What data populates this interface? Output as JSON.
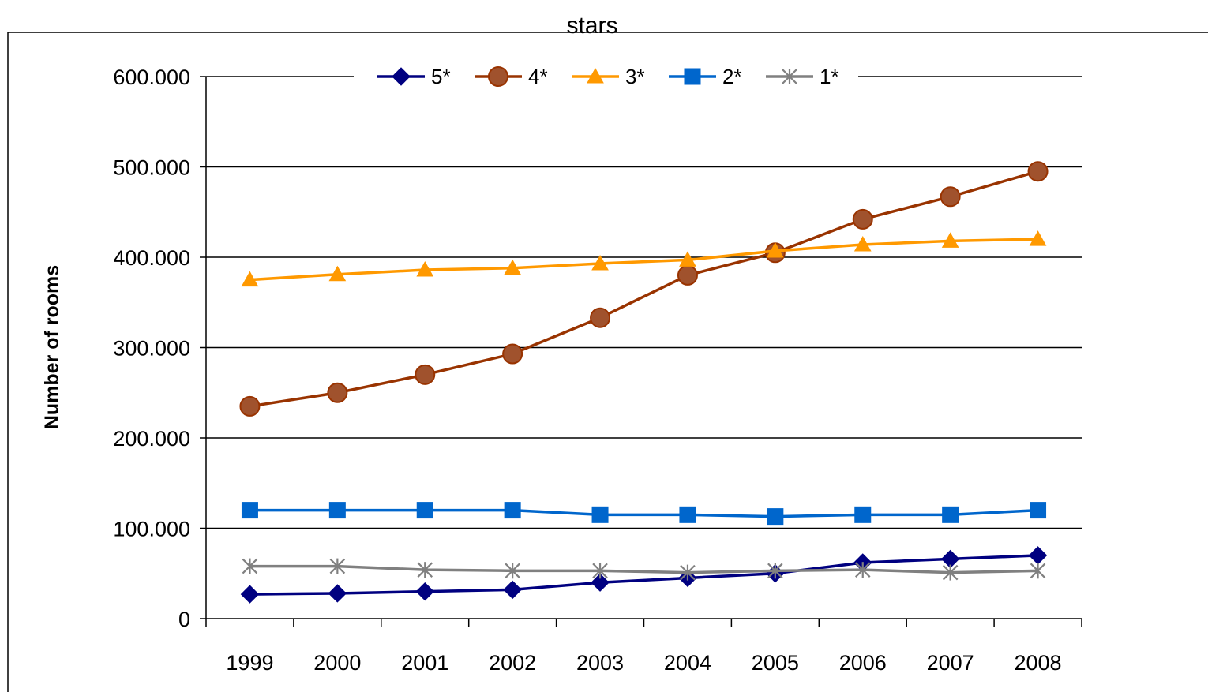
{
  "chart_data": {
    "type": "line",
    "title": "stars",
    "xlabel": "",
    "ylabel": "Number of rooms",
    "categories": [
      "1999",
      "2000",
      "2001",
      "2002",
      "2003",
      "2004",
      "2005",
      "2006",
      "2007",
      "2008"
    ],
    "ylim": [
      0,
      600000
    ],
    "yticks": [
      0,
      100000,
      200000,
      300000,
      400000,
      500000,
      600000
    ],
    "ytick_labels": [
      "0",
      "100.000",
      "200.000",
      "300.000",
      "400.000",
      "500.000",
      "600.000"
    ],
    "grid": "horizontal",
    "legend_position": "top",
    "series": [
      {
        "name": "5*",
        "color": "#000080",
        "marker": "diamond",
        "values": [
          27000,
          28000,
          30000,
          32000,
          40000,
          45000,
          50000,
          62000,
          66000,
          70000
        ]
      },
      {
        "name": "4*",
        "color": "#993300",
        "marker": "circle",
        "values": [
          235000,
          250000,
          270000,
          293000,
          333000,
          380000,
          405000,
          442000,
          467000,
          495000
        ]
      },
      {
        "name": "3*",
        "color": "#FF9900",
        "marker": "triangle",
        "values": [
          375000,
          381000,
          386000,
          388000,
          393000,
          397000,
          407000,
          414000,
          418000,
          420000
        ]
      },
      {
        "name": "2*",
        "color": "#0066CC",
        "marker": "square",
        "values": [
          120000,
          120000,
          120000,
          120000,
          115000,
          115000,
          113000,
          115000,
          115000,
          120000
        ]
      },
      {
        "name": "1*",
        "color": "#808080",
        "marker": "star",
        "values": [
          58000,
          58000,
          54000,
          53000,
          53000,
          51000,
          53000,
          54000,
          51000,
          53000
        ]
      }
    ]
  }
}
